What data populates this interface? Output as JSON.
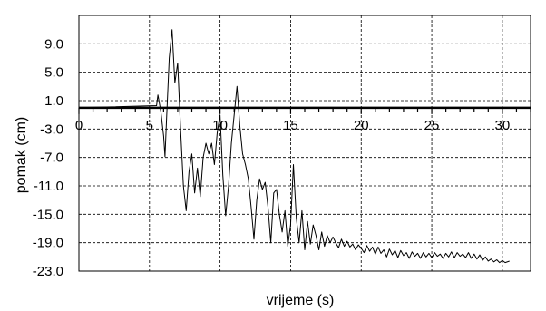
{
  "chart_data": {
    "type": "line",
    "title": "",
    "xlabel": "vrijeme (s)",
    "ylabel": "pomak (cm)",
    "xlim": [
      0,
      32
    ],
    "ylim": [
      -23,
      13
    ],
    "x_ticks": [
      0,
      5,
      10,
      15,
      20,
      25,
      30
    ],
    "x_tick_labels": [
      "0",
      "5",
      "10",
      "15",
      "20",
      "25",
      "30"
    ],
    "y_ticks": [
      9,
      5,
      1,
      -3,
      -7,
      -11,
      -15,
      -19,
      -23
    ],
    "y_tick_labels": [
      "9.0",
      "5.0",
      "1.0",
      "-3.0",
      "-7.0",
      "-11.0",
      "-15.0",
      "-19.0",
      "-23.0"
    ],
    "x_axis_at_y": 0,
    "grid": true,
    "grid_style": "dashed",
    "line_color": "#000000",
    "series": [
      {
        "x": [
          0.0,
          5.5,
          5.6,
          5.8,
          6.0,
          6.1,
          6.2,
          6.4,
          6.6,
          6.8,
          7.0,
          7.2,
          7.4,
          7.6,
          7.8,
          8.0,
          8.2,
          8.4,
          8.6,
          8.8,
          9.0,
          9.2,
          9.4,
          9.6,
          9.8,
          10.0,
          10.2,
          10.4,
          10.6,
          10.8,
          11.0,
          11.2,
          11.4,
          11.6,
          11.8,
          12.0,
          12.2,
          12.4,
          12.6,
          12.8,
          13.0,
          13.2,
          13.4,
          13.6,
          13.8,
          14.0,
          14.2,
          14.4,
          14.6,
          14.8,
          15.0,
          15.2,
          15.4,
          15.6,
          15.8,
          16.0,
          16.2,
          16.4,
          16.6,
          16.8,
          17.0,
          17.2,
          17.4,
          17.6,
          17.8,
          18.0,
          18.2,
          18.4,
          18.6,
          18.8,
          19.0,
          19.2,
          19.4,
          19.6,
          19.8,
          20.0,
          20.2,
          20.4,
          20.6,
          20.8,
          21.0,
          21.2,
          21.4,
          21.6,
          21.8,
          22.0,
          22.2,
          22.4,
          22.6,
          22.8,
          23.0,
          23.2,
          23.4,
          23.6,
          23.8,
          24.0,
          24.2,
          24.4,
          24.6,
          24.8,
          25.0,
          25.2,
          25.4,
          25.6,
          25.8,
          26.0,
          26.2,
          26.4,
          26.6,
          26.8,
          27.0,
          27.2,
          27.4,
          27.6,
          27.8,
          28.0,
          28.2,
          28.4,
          28.6,
          28.8,
          29.0,
          29.2,
          29.4,
          29.6,
          29.8,
          30.0,
          30.2,
          30.5
        ],
        "y": [
          0.0,
          0.3,
          1.8,
          -0.5,
          -4.0,
          -6.9,
          -2.0,
          7.0,
          11.0,
          3.5,
          6.3,
          -3.0,
          -11.0,
          -14.5,
          -9.0,
          -6.5,
          -12.0,
          -8.5,
          -12.5,
          -7.0,
          -5.0,
          -6.5,
          -5.0,
          -8.0,
          -3.5,
          -1.0,
          -9.5,
          -15.2,
          -11.0,
          -5.0,
          -1.0,
          3.0,
          -2.5,
          -6.5,
          -8.0,
          -10.0,
          -14.0,
          -18.5,
          -13.0,
          -10.0,
          -11.5,
          -10.5,
          -14.0,
          -19.0,
          -12.0,
          -11.5,
          -15.0,
          -17.5,
          -14.5,
          -19.5,
          -16.5,
          -8.0,
          -15.5,
          -19.0,
          -14.5,
          -20.0,
          -16.0,
          -19.2,
          -16.5,
          -18.0,
          -20.0,
          -17.5,
          -19.5,
          -18.0,
          -19.0,
          -18.2,
          -19.0,
          -19.7,
          -18.5,
          -19.5,
          -18.8,
          -19.6,
          -19.2,
          -20.0,
          -19.3,
          -19.8,
          -20.4,
          -19.4,
          -20.2,
          -19.6,
          -20.6,
          -19.6,
          -20.5,
          -20.0,
          -21.0,
          -19.9,
          -20.7,
          -20.1,
          -21.1,
          -20.1,
          -20.8,
          -20.4,
          -21.2,
          -20.3,
          -20.9,
          -20.5,
          -21.2,
          -20.4,
          -21.0,
          -20.5,
          -21.1,
          -20.4,
          -20.9,
          -20.6,
          -21.2,
          -20.5,
          -21.0,
          -20.3,
          -21.1,
          -20.4,
          -20.9,
          -20.6,
          -21.1,
          -20.4,
          -21.2,
          -20.6,
          -21.3,
          -20.7,
          -21.5,
          -21.0,
          -21.6,
          -21.3,
          -21.7,
          -21.4,
          -21.8,
          -21.5,
          -21.8,
          -21.6
        ]
      }
    ]
  }
}
